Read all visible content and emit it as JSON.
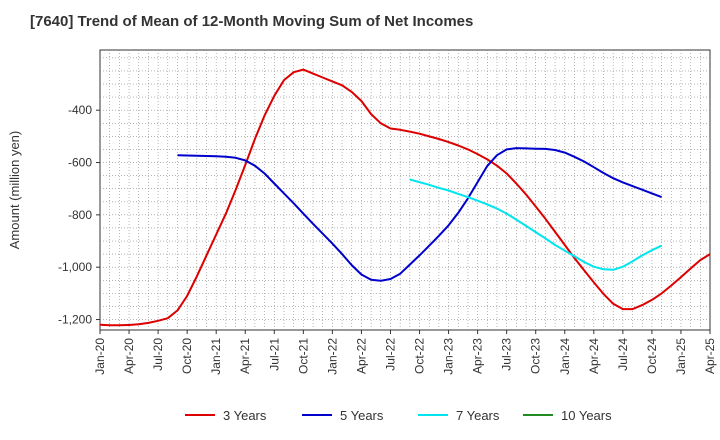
{
  "title": "[7640]  Trend of Mean of 12-Month Moving Sum of Net Incomes",
  "chart_data": {
    "type": "line",
    "title": "[7640]  Trend of Mean of 12-Month Moving Sum of Net Incomes",
    "xlabel": "",
    "ylabel": "Amount (million yen)",
    "x_tick_labels": [
      "Jan-20",
      "Apr-20",
      "Jul-20",
      "Oct-20",
      "Jan-21",
      "Apr-21",
      "Jul-21",
      "Oct-21",
      "Jan-22",
      "Apr-22",
      "Jul-22",
      "Oct-22",
      "Jan-23",
      "Apr-23",
      "Jul-23",
      "Oct-23",
      "Jan-24",
      "Apr-24",
      "Jul-24",
      "Oct-24",
      "Jan-25",
      "Apr-25"
    ],
    "y_ticks": [
      -1200,
      -1000,
      -800,
      -600,
      -400
    ],
    "y_tick_labels": [
      "-1,200",
      "-1,000",
      "-800",
      "-600",
      "-400"
    ],
    "ylim": [
      -1240,
      -170
    ],
    "grid": true,
    "legend_position": "bottom",
    "series": [
      {
        "name": "3 Years",
        "color": "#dd0000",
        "start": "2020-01",
        "values": [
          -1220,
          -1222,
          -1222,
          -1221,
          -1218,
          -1213,
          -1205,
          -1195,
          -1165,
          -1110,
          -1035,
          -955,
          -875,
          -795,
          -705,
          -610,
          -510,
          -420,
          -345,
          -285,
          -255,
          -245,
          -260,
          -275,
          -290,
          -305,
          -330,
          -365,
          -415,
          -450,
          -470,
          -475,
          -482,
          -490,
          -500,
          -510,
          -522,
          -535,
          -550,
          -568,
          -588,
          -612,
          -642,
          -680,
          -722,
          -768,
          -815,
          -865,
          -915,
          -965,
          -1012,
          -1058,
          -1102,
          -1140,
          -1160,
          -1160,
          -1145,
          -1125,
          -1100,
          -1070,
          -1038,
          -1005,
          -973,
          -950
        ]
      },
      {
        "name": "5 Years",
        "color": "#0000cc",
        "start": "2020-09",
        "values": [
          -572,
          -573,
          -574,
          -575,
          -576,
          -578,
          -582,
          -592,
          -612,
          -642,
          -680,
          -718,
          -756,
          -795,
          -834,
          -872,
          -910,
          -950,
          -992,
          -1028,
          -1048,
          -1052,
          -1045,
          -1025,
          -990,
          -955,
          -918,
          -880,
          -840,
          -792,
          -737,
          -675,
          -613,
          -572,
          -550,
          -545,
          -546,
          -547,
          -548,
          -552,
          -562,
          -578,
          -596,
          -618,
          -640,
          -660,
          -676,
          -690,
          -704,
          -718,
          -732
        ]
      },
      {
        "name": "7 Years",
        "color": "#00e5ee",
        "start": "2022-09",
        "values": [
          -665,
          -675,
          -685,
          -697,
          -707,
          -720,
          -732,
          -746,
          -760,
          -776,
          -795,
          -818,
          -842,
          -866,
          -890,
          -915,
          -937,
          -958,
          -980,
          -998,
          -1008,
          -1010,
          -998,
          -978,
          -955,
          -935,
          -918
        ]
      },
      {
        "name": "10 Years",
        "color": "#228b22",
        "start": "2020-01",
        "values": []
      }
    ]
  }
}
